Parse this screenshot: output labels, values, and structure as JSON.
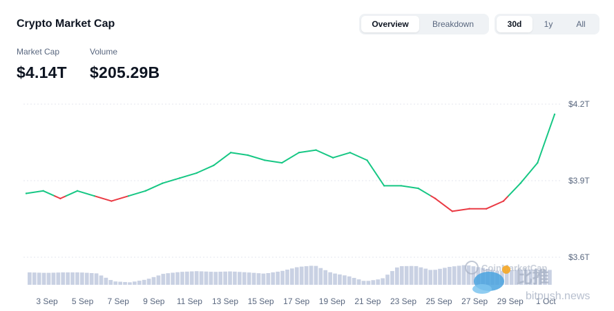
{
  "title": "Crypto Market Cap",
  "stats": {
    "market_cap_label": "Market Cap",
    "market_cap_value": "$4.14T",
    "volume_label": "Volume",
    "volume_value": "$205.29B"
  },
  "view_tabs": [
    {
      "label": "Overview",
      "active": true
    },
    {
      "label": "Breakdown",
      "active": false
    }
  ],
  "range_tabs": [
    {
      "label": "30d",
      "active": true
    },
    {
      "label": "1y",
      "active": false
    },
    {
      "label": "All",
      "active": false
    }
  ],
  "watermark": {
    "brand": "CoinMarketCap",
    "cn": "比推",
    "site": "bitpush.news"
  },
  "colors": {
    "up": "#16c784",
    "down": "#ea3943",
    "volume": "#c9d1e3"
  },
  "chart_data": {
    "type": "line",
    "title": "",
    "xlabel": "",
    "ylabel": "",
    "x_tick_labels": [
      "3 Sep",
      "5 Sep",
      "7 Sep",
      "9 Sep",
      "11 Sep",
      "13 Sep",
      "15 Sep",
      "17 Sep",
      "19 Sep",
      "21 Sep",
      "23 Sep",
      "25 Sep",
      "27 Sep",
      "29 Sep",
      "1 Oct"
    ],
    "y_tick_labels": [
      "$4.2T",
      "$3.9T",
      "$3.6T"
    ],
    "ylim": [
      3.6,
      4.2
    ],
    "baseline": 3.84,
    "series": [
      {
        "x": [
          "1 Sep",
          "2 Sep",
          "3 Sep",
          "4 Sep",
          "5 Sep",
          "6 Sep",
          "7 Sep",
          "8 Sep",
          "9 Sep",
          "10 Sep",
          "11 Sep",
          "12 Sep",
          "13 Sep",
          "14 Sep",
          "15 Sep",
          "16 Sep",
          "17 Sep",
          "18 Sep",
          "19 Sep",
          "20 Sep",
          "21 Sep",
          "22 Sep",
          "23 Sep",
          "24 Sep",
          "25 Sep",
          "26 Sep",
          "27 Sep",
          "28 Sep",
          "29 Sep",
          "30 Sep",
          "1 Oct",
          "2 Oct"
        ],
        "values": [
          3.85,
          3.86,
          3.83,
          3.86,
          3.84,
          3.82,
          3.84,
          3.86,
          3.89,
          3.91,
          3.93,
          3.96,
          4.01,
          4.0,
          3.98,
          3.97,
          4.01,
          4.02,
          3.99,
          4.01,
          3.98,
          3.88,
          3.88,
          3.87,
          3.83,
          3.78,
          3.79,
          3.79,
          3.82,
          3.89,
          3.97,
          4.16
        ]
      }
    ],
    "volume": {
      "x": [
        "1 Sep",
        "2 Sep",
        "3 Sep",
        "4 Sep",
        "5 Sep",
        "6 Sep",
        "7 Sep",
        "8 Sep",
        "9 Sep",
        "10 Sep",
        "11 Sep",
        "12 Sep",
        "13 Sep",
        "14 Sep",
        "15 Sep",
        "16 Sep",
        "17 Sep",
        "18 Sep",
        "19 Sep",
        "20 Sep",
        "21 Sep",
        "22 Sep",
        "23 Sep",
        "24 Sep",
        "25 Sep",
        "26 Sep",
        "27 Sep",
        "28 Sep",
        "29 Sep",
        "30 Sep",
        "1 Oct",
        "2 Oct"
      ],
      "values": [
        0.5,
        0.48,
        0.5,
        0.5,
        0.46,
        0.14,
        0.1,
        0.22,
        0.45,
        0.52,
        0.55,
        0.52,
        0.54,
        0.5,
        0.45,
        0.55,
        0.72,
        0.78,
        0.48,
        0.35,
        0.14,
        0.24,
        0.75,
        0.76,
        0.58,
        0.72,
        0.8,
        0.68,
        0.55,
        0.6,
        0.62,
        0.6
      ]
    }
  }
}
